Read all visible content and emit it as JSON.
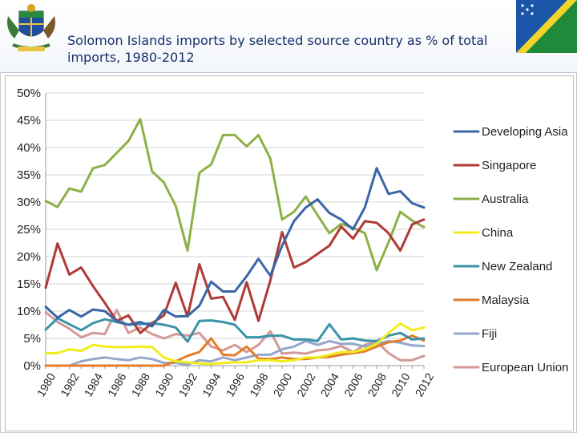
{
  "slide": {
    "title": "Solomon Islands imports by selected source country as % of total imports, 1980-2012"
  },
  "icons": {
    "logo": "coat-of-arms-icon",
    "flag": "solomon-islands-flag-icon"
  },
  "chart_data": {
    "type": "line",
    "x": [
      1980,
      1981,
      1982,
      1983,
      1984,
      1985,
      1986,
      1987,
      1988,
      1989,
      1990,
      1991,
      1992,
      1993,
      1994,
      1995,
      1996,
      1997,
      1998,
      1999,
      2000,
      2001,
      2002,
      2003,
      2004,
      2005,
      2006,
      2007,
      2008,
      2009,
      2010,
      2011,
      2012
    ],
    "x_tick_labels": [
      "1980",
      "1982",
      "1984",
      "1986",
      "1988",
      "1990",
      "1992",
      "1994",
      "1996",
      "1998",
      "2000",
      "2002",
      "2004",
      "2006",
      "2008",
      "2010",
      "2012"
    ],
    "ylim": [
      0,
      50
    ],
    "y_tick_labels": [
      "0%",
      "5%",
      "10%",
      "15%",
      "20%",
      "25%",
      "30%",
      "35%",
      "40%",
      "45%",
      "50%"
    ],
    "grid": true,
    "legend_position": "right",
    "series": [
      {
        "name": "Developing Asia",
        "color": "#3a66a8",
        "values": [
          10.8,
          8.8,
          10.2,
          9.0,
          10.3,
          10.0,
          8.2,
          7.5,
          8.0,
          7.2,
          10.2,
          9.0,
          9.1,
          11.0,
          15.4,
          13.6,
          13.6,
          16.4,
          19.6,
          16.5,
          22.0,
          26.5,
          29.0,
          30.5,
          28.0,
          26.8,
          25.0,
          29.0,
          36.2,
          31.5,
          32.0,
          29.8,
          29.0
        ]
      },
      {
        "name": "Singapore",
        "color": "#b03a36",
        "values": [
          14.3,
          22.4,
          16.7,
          18.0,
          14.6,
          11.5,
          8.2,
          9.2,
          6.0,
          7.8,
          9.2,
          15.2,
          9.0,
          18.6,
          12.3,
          12.6,
          8.4,
          15.3,
          8.2,
          15.6,
          24.5,
          18.0,
          19.0,
          20.5,
          22.0,
          25.5,
          23.3,
          26.5,
          26.2,
          24.3,
          21.1,
          25.9,
          26.8
        ]
      },
      {
        "name": "Australia",
        "color": "#8db048",
        "values": [
          30.2,
          29.1,
          32.5,
          31.9,
          36.2,
          36.8,
          39.0,
          41.2,
          45.2,
          35.6,
          33.6,
          29.3,
          21.1,
          35.4,
          36.9,
          42.3,
          42.3,
          40.2,
          42.3,
          38.0,
          26.8,
          28.2,
          31.0,
          27.6,
          24.3,
          26.0,
          25.3,
          24.3,
          17.5,
          22.6,
          28.2,
          26.6,
          25.4
        ]
      },
      {
        "name": "China",
        "color": "#f2ec1c",
        "values": [
          2.3,
          2.3,
          3.0,
          2.7,
          3.8,
          3.5,
          3.4,
          3.4,
          3.5,
          3.4,
          1.5,
          0.8,
          0.6,
          0.4,
          0.3,
          0.5,
          0.6,
          0.6,
          1.0,
          1.0,
          0.8,
          1.0,
          1.5,
          1.5,
          2.0,
          2.5,
          2.5,
          3.0,
          4.0,
          6.0,
          7.7,
          6.5,
          7.0
        ]
      },
      {
        "name": "New Zealand",
        "color": "#3a93a8",
        "values": [
          6.6,
          8.7,
          7.6,
          6.5,
          7.8,
          8.5,
          8.0,
          7.5,
          7.6,
          7.8,
          7.5,
          7.0,
          4.4,
          8.2,
          8.3,
          8.0,
          7.5,
          5.2,
          5.2,
          5.5,
          5.5,
          4.8,
          4.8,
          4.5,
          7.6,
          4.8,
          5.0,
          4.6,
          4.5,
          5.5,
          6.0,
          4.8,
          5.0
        ]
      },
      {
        "name": "Malaysia",
        "color": "#e47c2a",
        "values": [
          0,
          0,
          0,
          0,
          0,
          0,
          0,
          0,
          0,
          0,
          0,
          0.8,
          1.8,
          2.5,
          5.0,
          2.0,
          1.9,
          3.5,
          1.3,
          1.2,
          1.5,
          1.2,
          1.2,
          1.5,
          1.6,
          2.0,
          2.3,
          2.6,
          3.5,
          4.3,
          4.6,
          5.5,
          4.6
        ]
      },
      {
        "name": "Fiji",
        "color": "#93a7cc",
        "values": [
          0,
          0,
          0,
          0.8,
          1.2,
          1.5,
          1.2,
          1.0,
          1.5,
          1.2,
          0.5,
          0.5,
          0.2,
          1.0,
          0.8,
          1.5,
          1.0,
          1.5,
          2.0,
          2.0,
          3.0,
          3.5,
          4.5,
          3.8,
          4.5,
          4.0,
          4.0,
          3.5,
          4.0,
          4.5,
          4.2,
          3.7,
          3.6
        ]
      },
      {
        "name": "European Union",
        "color": "#d49898",
        "values": [
          9.8,
          8.0,
          6.8,
          5.2,
          6.0,
          5.8,
          10.2,
          6.0,
          7.0,
          5.8,
          5.0,
          5.8,
          5.5,
          6.0,
          3.5,
          2.8,
          3.8,
          2.5,
          3.8,
          6.3,
          2.2,
          2.4,
          2.2,
          2.8,
          3.0,
          3.6,
          2.5,
          3.8,
          4.5,
          2.3,
          1.0,
          1.0,
          1.8
        ]
      }
    ]
  }
}
